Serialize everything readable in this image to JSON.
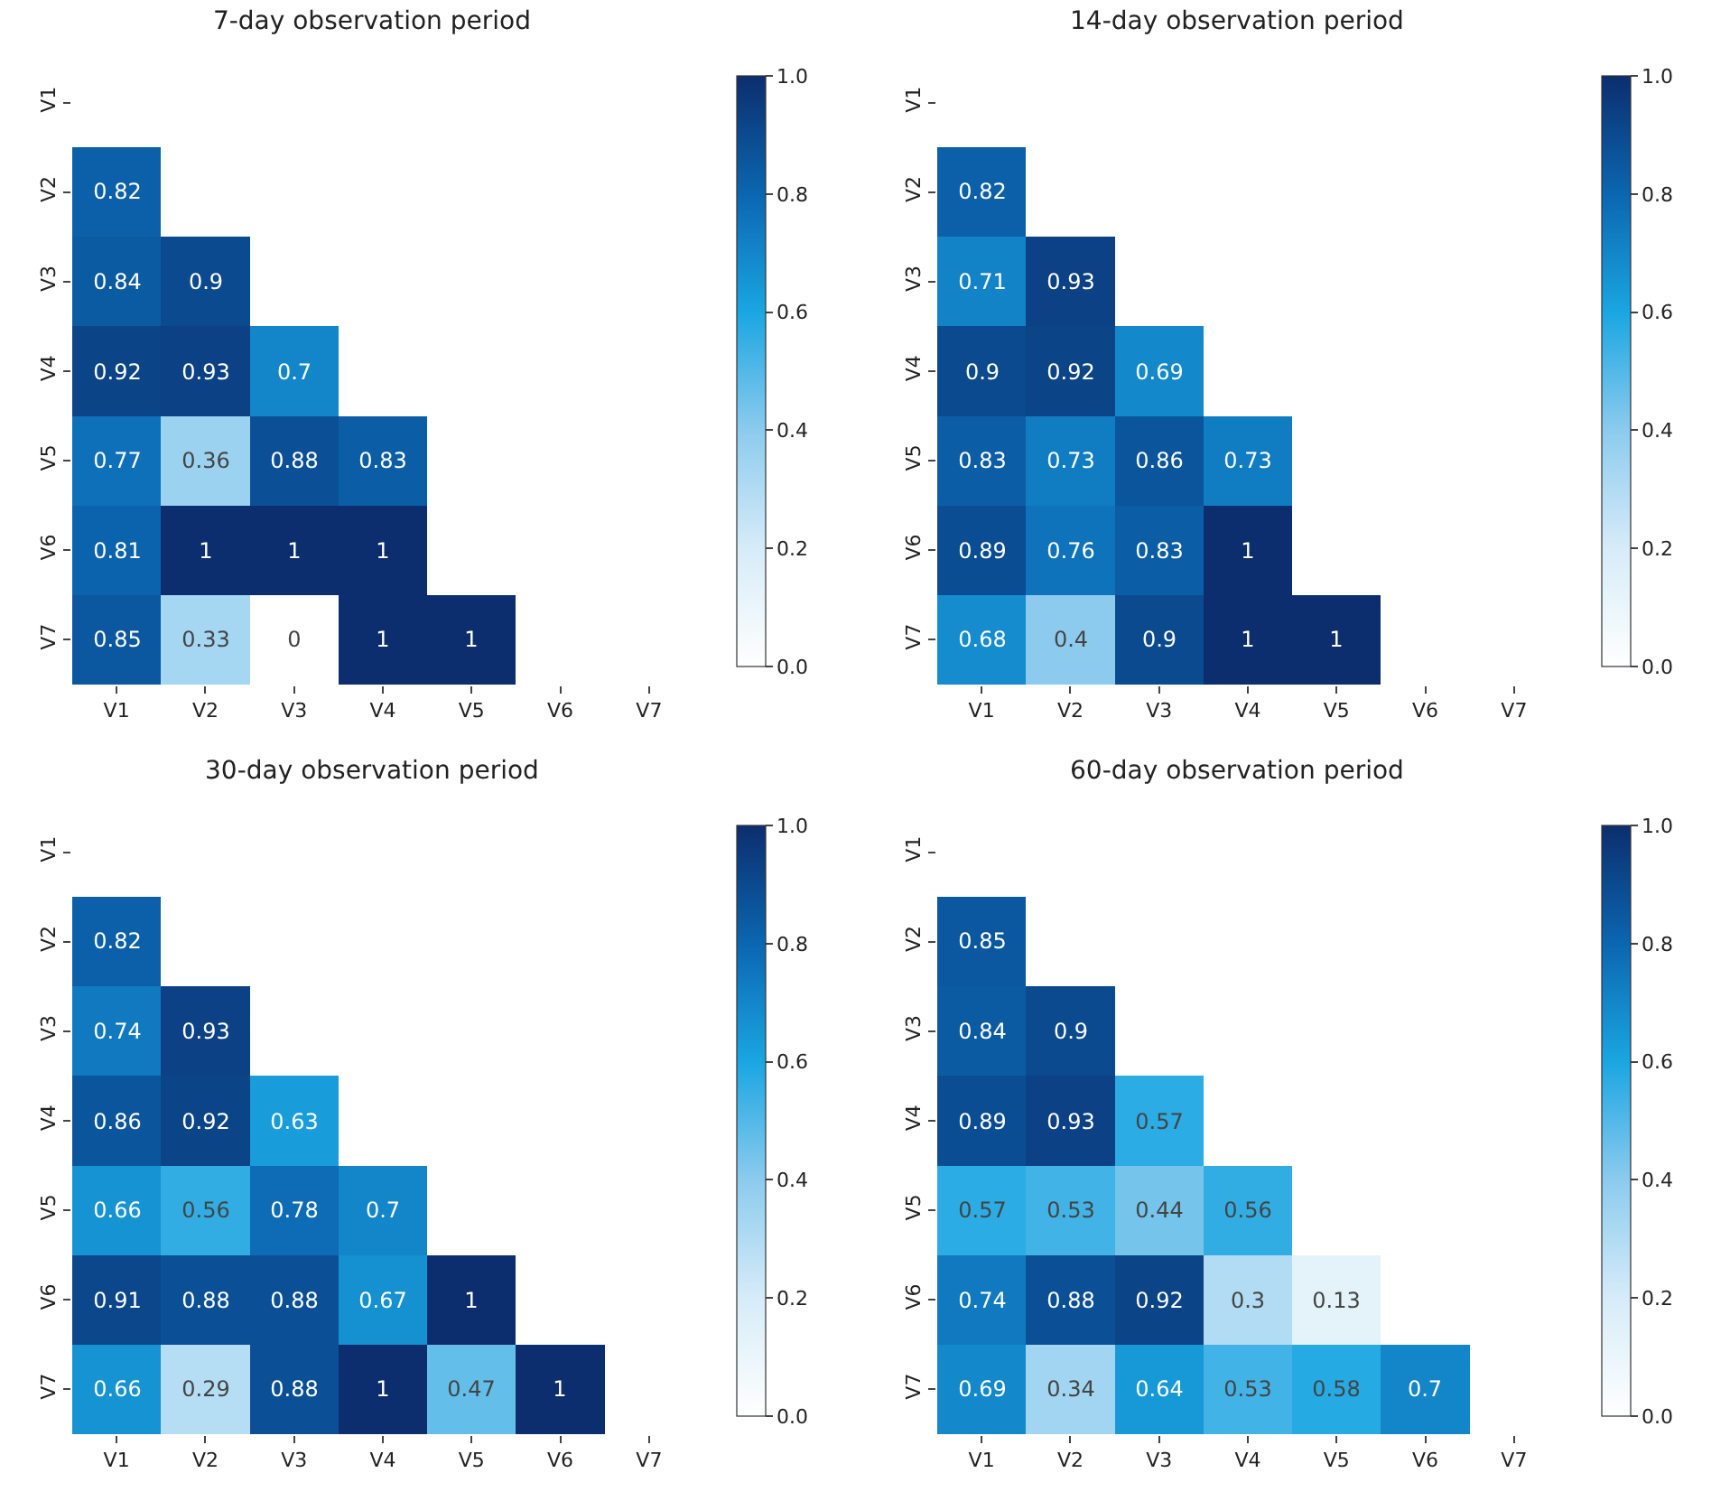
{
  "chart_data": [
    {
      "type": "heatmap",
      "title": "7-day observation period",
      "categories": [
        "V1",
        "V2",
        "V3",
        "V4",
        "V5",
        "V6",
        "V7"
      ],
      "y_categories": [
        "V1",
        "V2",
        "V3",
        "V4",
        "V5",
        "V6",
        "V7"
      ],
      "cells": [
        [
          null,
          null,
          null,
          null,
          null,
          null,
          null
        ],
        [
          0.82,
          null,
          null,
          null,
          null,
          null,
          null
        ],
        [
          0.84,
          0.9,
          null,
          null,
          null,
          null,
          null
        ],
        [
          0.92,
          0.93,
          0.7,
          null,
          null,
          null,
          null
        ],
        [
          0.77,
          0.36,
          0.88,
          0.83,
          null,
          null,
          null
        ],
        [
          0.81,
          1,
          1,
          1,
          null,
          null,
          null
        ],
        [
          0.85,
          0.33,
          0,
          1,
          1,
          null,
          null
        ]
      ],
      "clim": [
        0,
        1
      ],
      "cticks": [
        {
          "value": 0,
          "label": "0.0"
        },
        {
          "value": 0.2,
          "label": "0.2"
        },
        {
          "value": 0.4,
          "label": "0.4"
        },
        {
          "value": 0.6,
          "label": "0.6"
        },
        {
          "value": 0.8,
          "label": "0.8"
        },
        {
          "value": 1,
          "label": "1.0"
        }
      ],
      "data_labels": true
    },
    {
      "type": "heatmap",
      "title": "14-day observation period",
      "categories": [
        "V1",
        "V2",
        "V3",
        "V4",
        "V5",
        "V6",
        "V7"
      ],
      "y_categories": [
        "V1",
        "V2",
        "V3",
        "V4",
        "V5",
        "V6",
        "V7"
      ],
      "cells": [
        [
          null,
          null,
          null,
          null,
          null,
          null,
          null
        ],
        [
          0.82,
          null,
          null,
          null,
          null,
          null,
          null
        ],
        [
          0.71,
          0.93,
          null,
          null,
          null,
          null,
          null
        ],
        [
          0.9,
          0.92,
          0.69,
          null,
          null,
          null,
          null
        ],
        [
          0.83,
          0.73,
          0.86,
          0.73,
          null,
          null,
          null
        ],
        [
          0.89,
          0.76,
          0.83,
          1,
          null,
          null,
          null
        ],
        [
          0.68,
          0.4,
          0.9,
          1,
          1,
          null,
          null
        ]
      ],
      "clim": [
        0,
        1
      ],
      "cticks": [
        {
          "value": 0,
          "label": "0.0"
        },
        {
          "value": 0.2,
          "label": "0.2"
        },
        {
          "value": 0.4,
          "label": "0.4"
        },
        {
          "value": 0.6,
          "label": "0.6"
        },
        {
          "value": 0.8,
          "label": "0.8"
        },
        {
          "value": 1,
          "label": "1.0"
        }
      ],
      "data_labels": true
    },
    {
      "type": "heatmap",
      "title": "30-day observation period",
      "categories": [
        "V1",
        "V2",
        "V3",
        "V4",
        "V5",
        "V6",
        "V7"
      ],
      "y_categories": [
        "V1",
        "V2",
        "V3",
        "V4",
        "V5",
        "V6",
        "V7"
      ],
      "cells": [
        [
          null,
          null,
          null,
          null,
          null,
          null,
          null
        ],
        [
          0.82,
          null,
          null,
          null,
          null,
          null,
          null
        ],
        [
          0.74,
          0.93,
          null,
          null,
          null,
          null,
          null
        ],
        [
          0.86,
          0.92,
          0.63,
          null,
          null,
          null,
          null
        ],
        [
          0.66,
          0.56,
          0.78,
          0.7,
          null,
          null,
          null
        ],
        [
          0.91,
          0.88,
          0.88,
          0.67,
          1,
          null,
          null
        ],
        [
          0.66,
          0.29,
          0.88,
          1,
          0.47,
          1,
          null
        ]
      ],
      "clim": [
        0,
        1
      ],
      "cticks": [
        {
          "value": 0,
          "label": "0.0"
        },
        {
          "value": 0.2,
          "label": "0.2"
        },
        {
          "value": 0.4,
          "label": "0.4"
        },
        {
          "value": 0.6,
          "label": "0.6"
        },
        {
          "value": 0.8,
          "label": "0.8"
        },
        {
          "value": 1,
          "label": "1.0"
        }
      ],
      "data_labels": true
    },
    {
      "type": "heatmap",
      "title": "60-day observation period",
      "categories": [
        "V1",
        "V2",
        "V3",
        "V4",
        "V5",
        "V6",
        "V7"
      ],
      "y_categories": [
        "V1",
        "V2",
        "V3",
        "V4",
        "V5",
        "V6",
        "V7"
      ],
      "cells": [
        [
          null,
          null,
          null,
          null,
          null,
          null,
          null
        ],
        [
          0.85,
          null,
          null,
          null,
          null,
          null,
          null
        ],
        [
          0.84,
          0.9,
          null,
          null,
          null,
          null,
          null
        ],
        [
          0.89,
          0.93,
          0.57,
          null,
          null,
          null,
          null
        ],
        [
          0.57,
          0.53,
          0.44,
          0.56,
          null,
          null,
          null
        ],
        [
          0.74,
          0.88,
          0.92,
          0.3,
          0.13,
          null,
          null
        ],
        [
          0.69,
          0.34,
          0.64,
          0.53,
          0.58,
          0.7,
          null
        ]
      ],
      "clim": [
        0,
        1
      ],
      "cticks": [
        {
          "value": 0,
          "label": "0.0"
        },
        {
          "value": 0.2,
          "label": "0.2"
        },
        {
          "value": 0.4,
          "label": "0.4"
        },
        {
          "value": 0.6,
          "label": "0.6"
        },
        {
          "value": 0.8,
          "label": "0.8"
        },
        {
          "value": 1,
          "label": "1.0"
        }
      ],
      "data_labels": true
    }
  ]
}
